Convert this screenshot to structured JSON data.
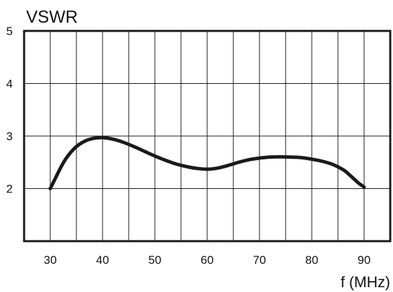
{
  "chart_data": {
    "type": "line",
    "title": "",
    "ylabel": "VSWR",
    "xlabel": "f (MHz)",
    "xlim": [
      25,
      95
    ],
    "ylim": [
      1,
      5
    ],
    "x_ticks": [
      30,
      40,
      50,
      60,
      70,
      80,
      90
    ],
    "x_tick_labels": [
      "30",
      "40",
      "50",
      "60",
      "70",
      "80",
      "90"
    ],
    "y_ticks": [
      2,
      3,
      4,
      5
    ],
    "y_tick_labels": [
      "2",
      "3",
      "4",
      "5"
    ],
    "x_grid_lines": [
      30,
      35,
      40,
      45,
      50,
      55,
      60,
      65,
      70,
      75,
      80,
      85,
      90
    ],
    "y_grid_lines": [
      2,
      3,
      4
    ],
    "grid": true,
    "legend": "none",
    "line_color": "#1a1a1a",
    "series": [
      {
        "x": [
          30,
          31,
          32,
          33,
          34,
          35,
          36,
          37,
          38,
          39,
          40,
          42,
          44,
          46,
          48,
          50,
          52,
          54,
          56,
          58,
          60,
          62,
          64,
          66,
          68,
          70,
          72,
          74,
          76,
          78,
          80,
          82,
          84,
          86,
          87,
          88,
          89,
          90
        ],
        "values": [
          2.0,
          2.2,
          2.4,
          2.57,
          2.7,
          2.8,
          2.87,
          2.92,
          2.95,
          2.965,
          2.97,
          2.94,
          2.88,
          2.8,
          2.71,
          2.62,
          2.54,
          2.47,
          2.42,
          2.385,
          2.37,
          2.39,
          2.44,
          2.5,
          2.55,
          2.58,
          2.6,
          2.605,
          2.6,
          2.59,
          2.56,
          2.52,
          2.46,
          2.36,
          2.28,
          2.19,
          2.1,
          2.03
        ]
      }
    ]
  }
}
